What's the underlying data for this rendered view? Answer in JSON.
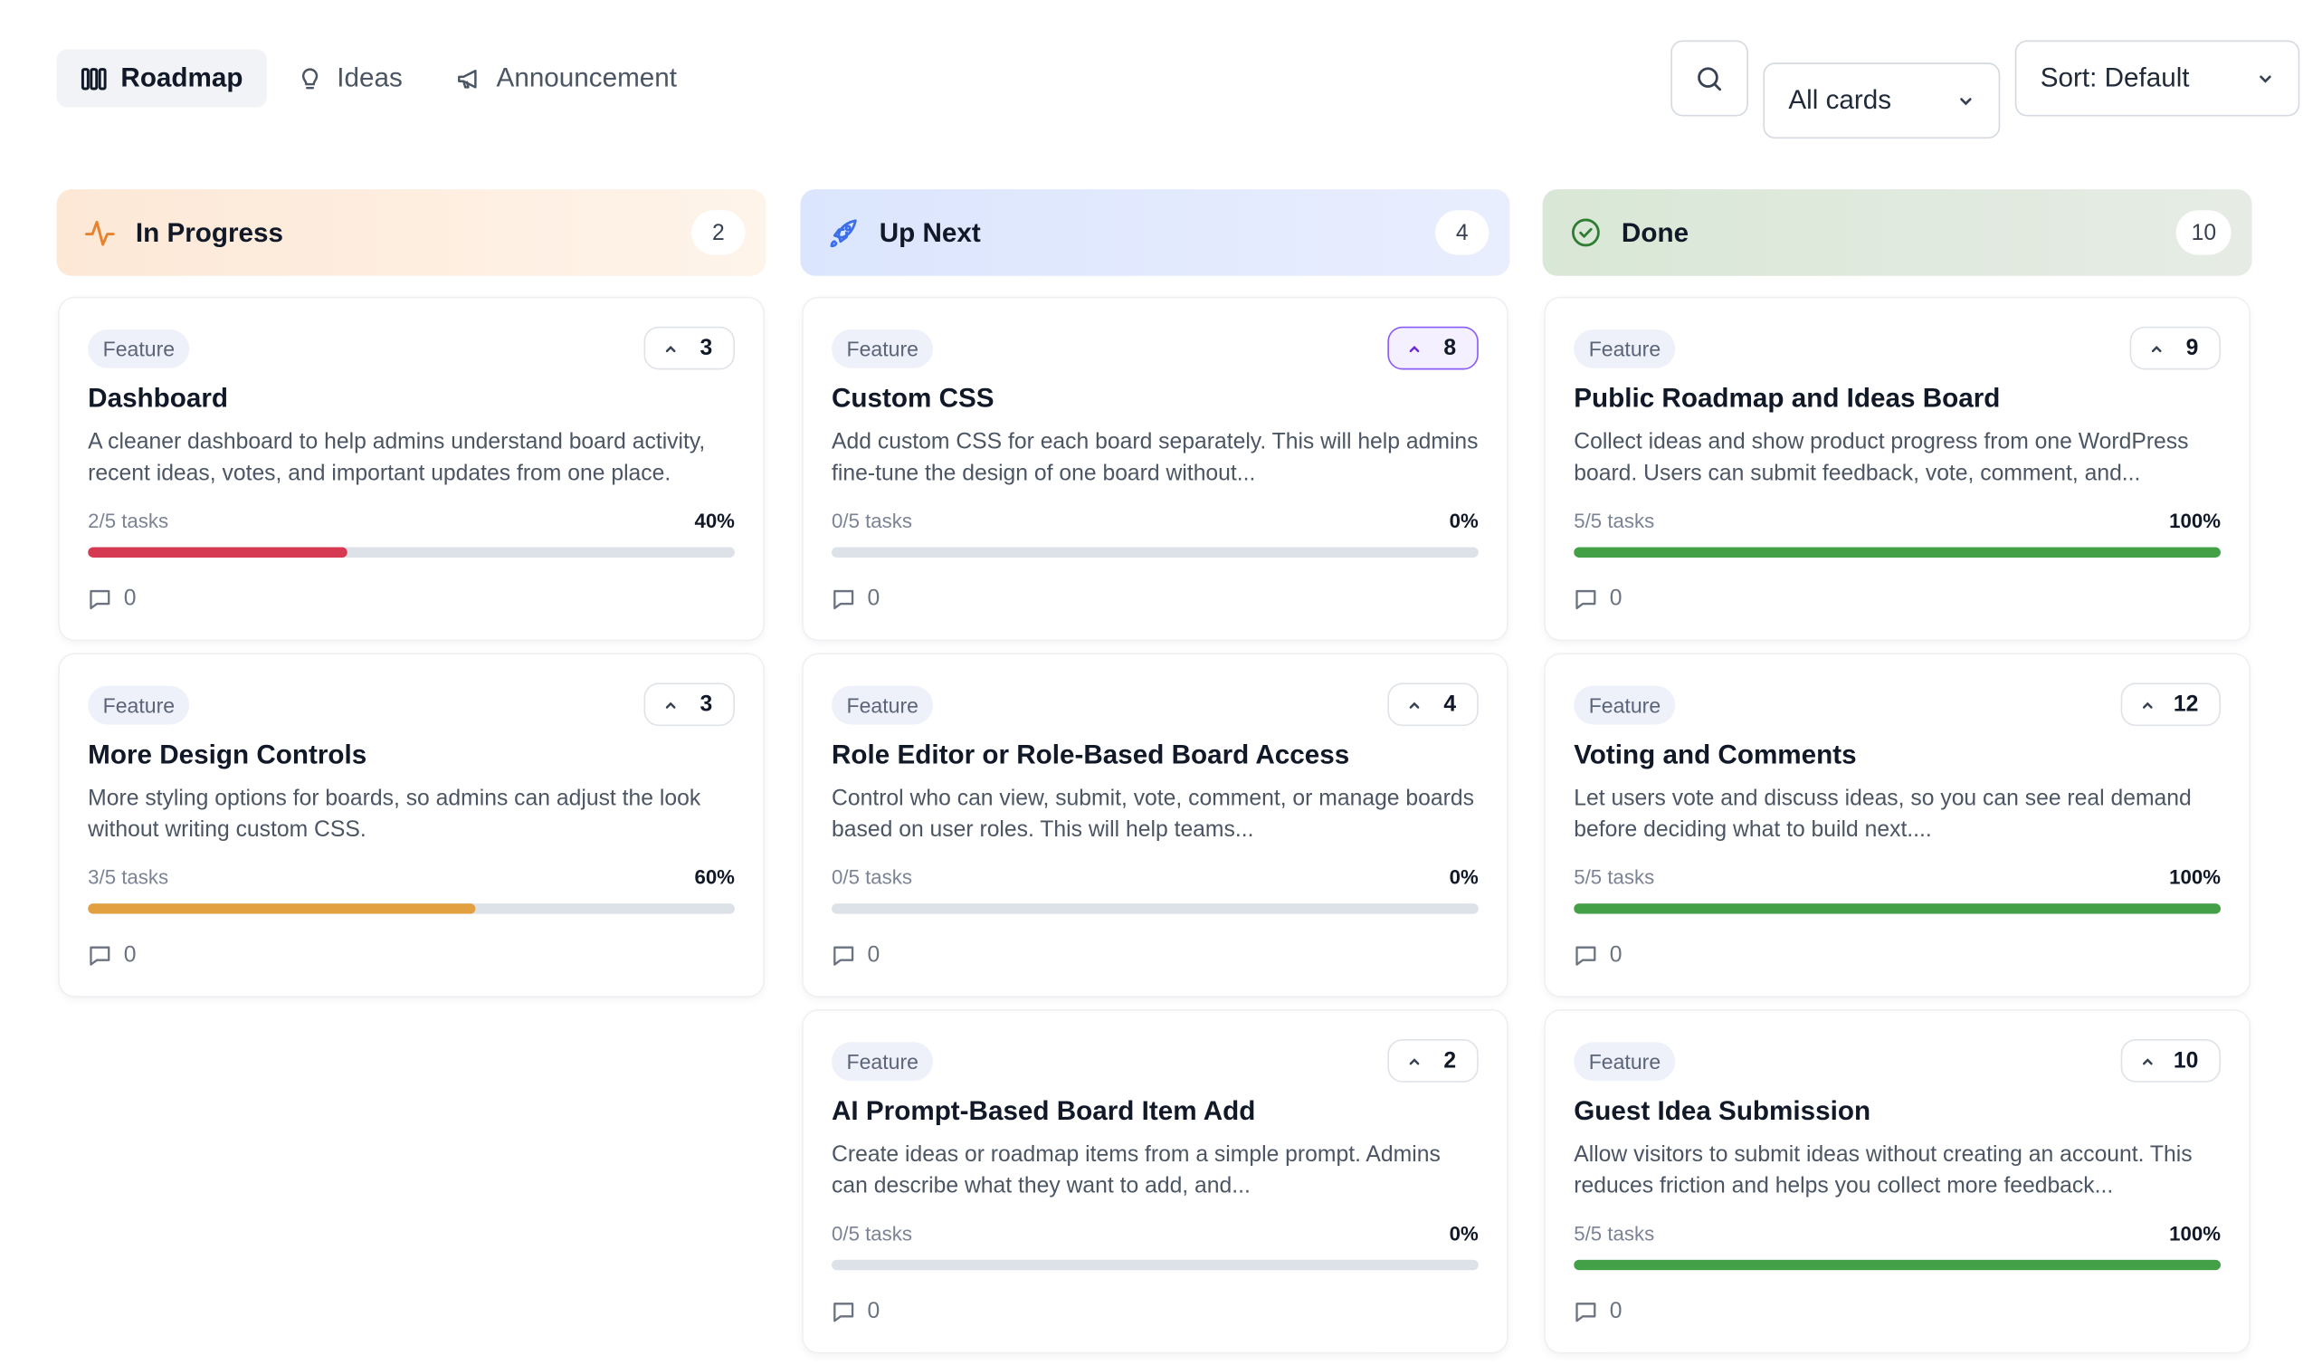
{
  "nav": {
    "tabs": [
      {
        "label": "Roadmap",
        "icon": "roadmap-columns-icon",
        "active": true
      },
      {
        "label": "Ideas",
        "icon": "lightbulb-icon",
        "active": false
      },
      {
        "label": "Announcement",
        "icon": "megaphone-icon",
        "active": false
      }
    ]
  },
  "toolbar": {
    "search_icon": "search-icon",
    "filter_value": "All cards",
    "sort_value": "Sort: Default"
  },
  "colors": {
    "red": "#d63a52",
    "orange": "#e3a040",
    "green": "#43a047",
    "in_progress_icon": "#e8822e",
    "up_next_icon": "#3b6ee8",
    "done_icon": "#2e7d32"
  },
  "columns": [
    {
      "title": "In Progress",
      "count": "2",
      "icon": "activity-pulse-icon",
      "cards": [
        {
          "badge": "Feature",
          "votes": "3",
          "voted": false,
          "title": "Dashboard",
          "desc": "A cleaner dashboard to help admins understand board activity, recent ideas, votes, and important updates from one place.",
          "tasks": "2/5 tasks",
          "pct": "40%",
          "progress": 0.4,
          "bar_color": "#d63a52",
          "comments": "0"
        },
        {
          "badge": "Feature",
          "votes": "3",
          "voted": false,
          "title": "More Design Controls",
          "desc": "More styling options for boards, so admins can adjust the look without writing custom CSS.",
          "tasks": "3/5 tasks",
          "pct": "60%",
          "progress": 0.6,
          "bar_color": "#e3a040",
          "comments": "0"
        }
      ]
    },
    {
      "title": "Up Next",
      "count": "4",
      "icon": "rocket-icon",
      "cards": [
        {
          "badge": "Feature",
          "votes": "8",
          "voted": true,
          "title": "Custom CSS",
          "desc": "Add custom CSS for each board separately. This will help admins fine-tune the design of one board without...",
          "tasks": "0/5 tasks",
          "pct": "0%",
          "progress": 0,
          "bar_color": "#dde2e8",
          "comments": "0"
        },
        {
          "badge": "Feature",
          "votes": "4",
          "voted": false,
          "title": "Role Editor or Role-Based Board Access",
          "desc": "Control who can view, submit, vote, comment, or manage boards based on user roles. This will help teams...",
          "tasks": "0/5 tasks",
          "pct": "0%",
          "progress": 0,
          "bar_color": "#dde2e8",
          "comments": "0"
        },
        {
          "badge": "Feature",
          "votes": "2",
          "voted": false,
          "title": "AI Prompt-Based Board Item Add",
          "desc": "Create ideas or roadmap items from a simple prompt. Admins can describe what they want to add, and...",
          "tasks": "0/5 tasks",
          "pct": "0%",
          "progress": 0,
          "bar_color": "#dde2e8",
          "comments": "0"
        }
      ]
    },
    {
      "title": "Done",
      "count": "10",
      "icon": "check-circle-icon",
      "cards": [
        {
          "badge": "Feature",
          "votes": "9",
          "voted": false,
          "title": "Public Roadmap and Ideas Board",
          "desc": "Collect ideas and show product progress from one WordPress board. Users can submit feedback, vote, comment, and...",
          "tasks": "5/5 tasks",
          "pct": "100%",
          "progress": 1,
          "bar_color": "#43a047",
          "comments": "0"
        },
        {
          "badge": "Feature",
          "votes": "12",
          "voted": false,
          "title": "Voting and Comments",
          "desc": "Let users vote and discuss ideas, so you can see real demand before deciding what to build next....",
          "tasks": "5/5 tasks",
          "pct": "100%",
          "progress": 1,
          "bar_color": "#43a047",
          "comments": "0"
        },
        {
          "badge": "Feature",
          "votes": "10",
          "voted": false,
          "title": "Guest Idea Submission",
          "desc": "Allow visitors to submit ideas without creating an account. This reduces friction and helps you collect more feedback...",
          "tasks": "5/5 tasks",
          "pct": "100%",
          "progress": 1,
          "bar_color": "#43a047",
          "comments": "0"
        }
      ]
    }
  ]
}
